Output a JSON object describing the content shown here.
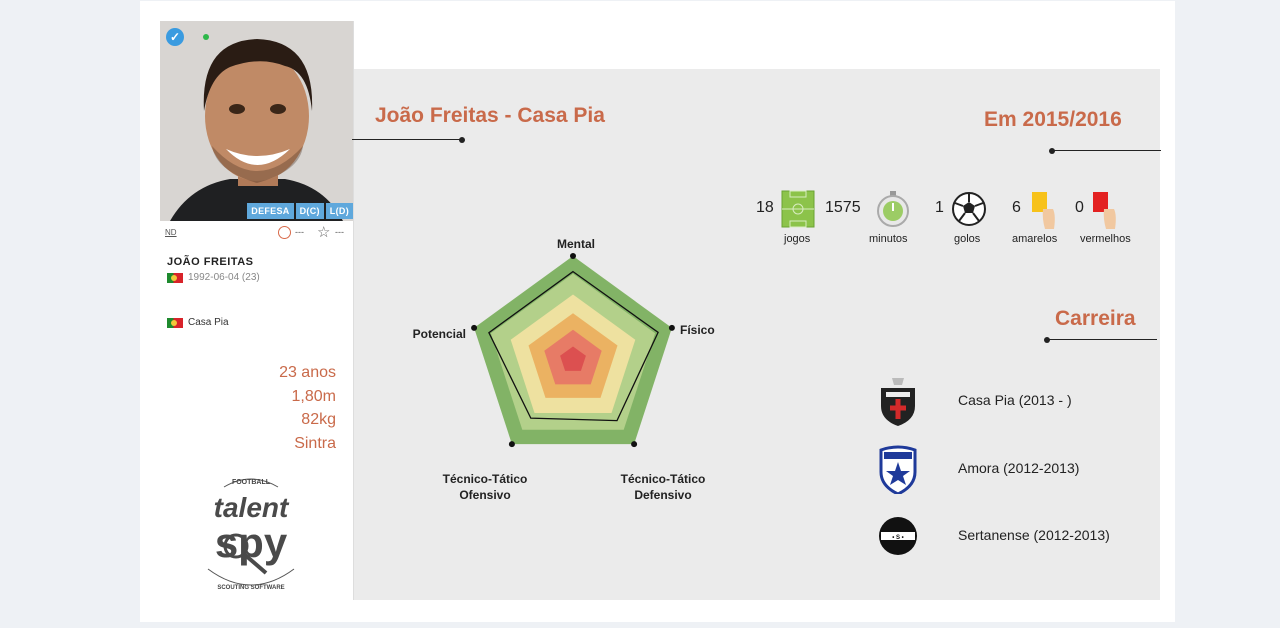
{
  "player": {
    "name": "JOÃO FREITAS",
    "birth": "1992-06-04 (23)",
    "club": "Casa Pia",
    "positions": [
      "DEFESA",
      "D(C)",
      "L(D)"
    ],
    "nd_label": "ND",
    "clock_value": "---",
    "star_value": "---",
    "facts": [
      "23 anos",
      "1,80m",
      "82kg",
      "Sintra"
    ]
  },
  "header": {
    "title": "João Freitas - Casa Pia",
    "season": "Em 2015/2016"
  },
  "stats": [
    {
      "value": "18",
      "label": "jogos",
      "icon": "pitch-icon"
    },
    {
      "value": "1575",
      "label": "minutos",
      "icon": "stopwatch-icon"
    },
    {
      "value": "1",
      "label": "golos",
      "icon": "ball-icon"
    },
    {
      "value": "6",
      "label": "amarelos",
      "icon": "yellow-card-icon"
    },
    {
      "value": "0",
      "label": "vermelhos",
      "icon": "red-card-icon"
    }
  ],
  "radar": {
    "axes": [
      "Mental",
      "Físico",
      "Técnico-Tático Defensivo",
      "Técnico-Tático Ofensivo",
      "Potencial"
    ],
    "axes_html": [
      "Mental",
      "Físico",
      "Técnico-Tático<br>Defensivo",
      "Técnico-Tático<br>Ofensivo",
      "Potencial"
    ],
    "player_values": [
      0.85,
      0.86,
      0.72,
      0.69,
      0.85
    ],
    "band_colors": [
      "#82b366",
      "#b3d08a",
      "#eee1a0",
      "#ebb262",
      "#e77b66",
      "#dc5050"
    ]
  },
  "career": {
    "title": "Carreira",
    "items": [
      {
        "text": "Casa Pia (2013 - )",
        "crest": "casa-pia-crest"
      },
      {
        "text": "Amora (2012-2013)",
        "crest": "amora-crest"
      },
      {
        "text": "Sertanense (2012-2013)",
        "crest": "sertanense-crest"
      }
    ]
  },
  "logo": {
    "top": "FOOTBALL",
    "line1": "talent",
    "line2": "spy",
    "bottom": "SCOUTING SOFTWARE"
  }
}
